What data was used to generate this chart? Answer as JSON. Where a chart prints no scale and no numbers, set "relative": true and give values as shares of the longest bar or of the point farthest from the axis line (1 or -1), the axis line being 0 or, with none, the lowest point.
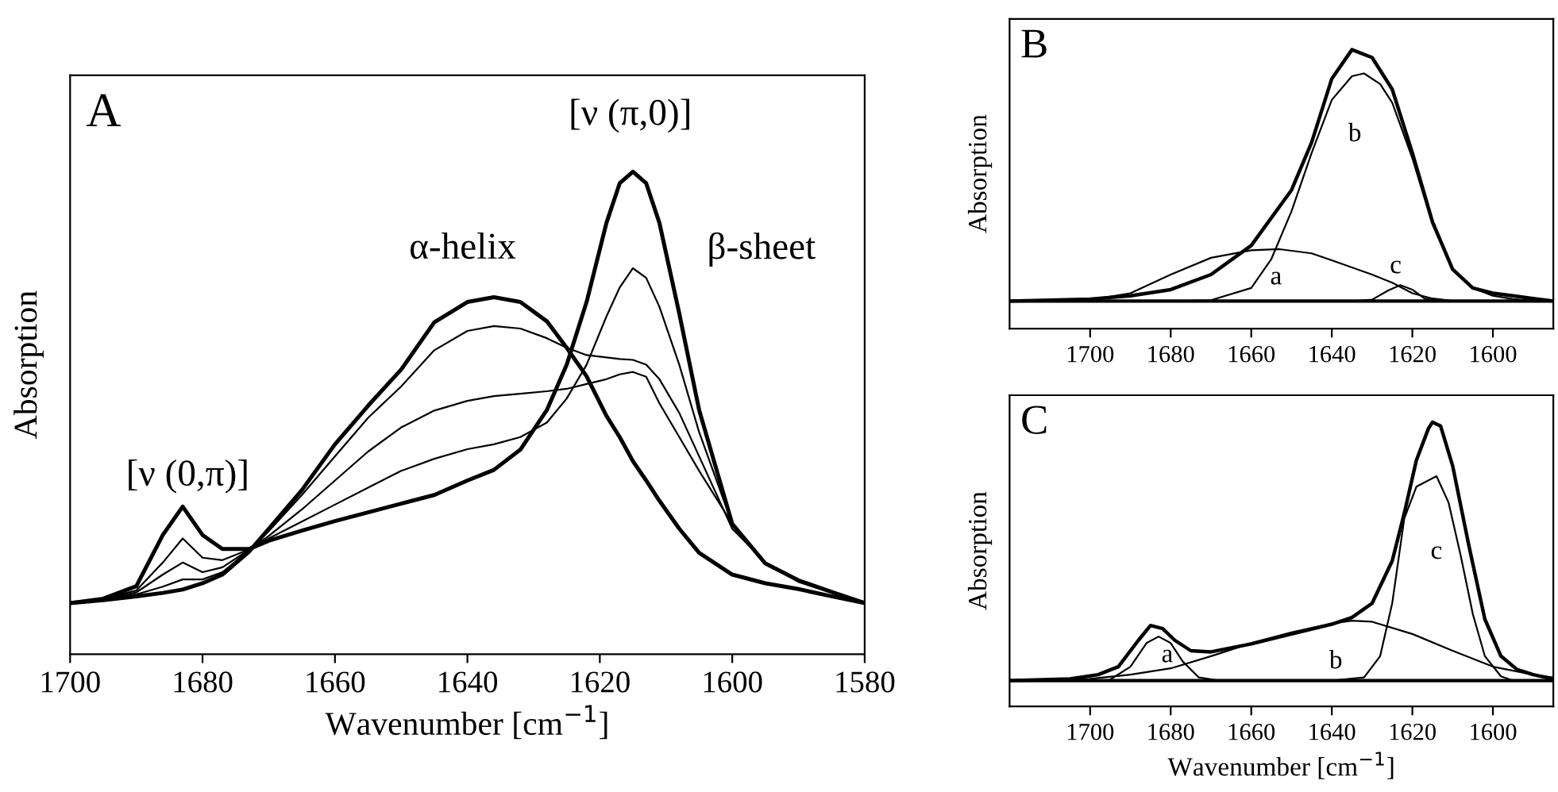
{
  "chart_data": [
    {
      "type": "line",
      "title": "A",
      "xlabel": "Wavenumber [cm$^{−1}$]",
      "ylabel": "Absorption",
      "relative": true,
      "xlim": [
        1700,
        1580
      ],
      "xticks": [
        1700,
        1680,
        1660,
        1640,
        1620,
        1600,
        1580
      ],
      "tick_labels": "x",
      "x": [
        1700,
        1695,
        1690,
        1686,
        1683,
        1680,
        1677,
        1673,
        1670,
        1665,
        1660,
        1655,
        1650,
        1645,
        1640,
        1636,
        1632,
        1628,
        1625,
        1622,
        1619,
        1617,
        1615,
        1613,
        1611,
        1608,
        1605,
        1600,
        1595,
        1590,
        1585,
        1580
      ],
      "series": [
        {
          "color": "#000000",
          "values": [
            0.106,
            0.112,
            0.12,
            0.127,
            0.134,
            0.147,
            0.165,
            0.212,
            0.26,
            0.34,
            0.435,
            0.515,
            0.59,
            0.688,
            0.73,
            0.74,
            0.73,
            0.69,
            0.635,
            0.576,
            0.494,
            0.45,
            0.4,
            0.36,
            0.318,
            0.26,
            0.21,
            0.165,
            0.147,
            0.135,
            0.12,
            0.106
          ]
        },
        {
          "color": "#000000",
          "values": [
            0.106,
            0.113,
            0.124,
            0.14,
            0.155,
            0.155,
            0.17,
            0.215,
            0.255,
            0.33,
            0.41,
            0.49,
            0.555,
            0.63,
            0.67,
            0.68,
            0.675,
            0.655,
            0.635,
            0.62,
            0.615,
            0.612,
            0.61,
            0.6,
            0.57,
            0.5,
            0.41,
            0.26,
            0.19,
            0.15,
            0.128,
            0.106
          ]
        },
        {
          "color": "#000000",
          "values": [
            0.106,
            0.114,
            0.128,
            0.165,
            0.19,
            0.17,
            0.18,
            0.216,
            0.245,
            0.3,
            0.36,
            0.42,
            0.47,
            0.505,
            0.525,
            0.535,
            0.54,
            0.545,
            0.55,
            0.56,
            0.57,
            0.58,
            0.585,
            0.575,
            0.52,
            0.45,
            0.38,
            0.27,
            0.19,
            0.15,
            0.128,
            0.106
          ]
        },
        {
          "color": "#000000",
          "values": [
            0.106,
            0.115,
            0.132,
            0.19,
            0.24,
            0.2,
            0.195,
            0.217,
            0.24,
            0.275,
            0.31,
            0.345,
            0.38,
            0.405,
            0.425,
            0.435,
            0.45,
            0.48,
            0.53,
            0.6,
            0.7,
            0.76,
            0.8,
            0.78,
            0.72,
            0.6,
            0.46,
            0.27,
            0.19,
            0.152,
            0.128,
            0.106
          ]
        },
        {
          "color": "#000000",
          "values": [
            0.106,
            0.115,
            0.141,
            0.247,
            0.306,
            0.247,
            0.218,
            0.218,
            0.235,
            0.256,
            0.276,
            0.294,
            0.312,
            0.33,
            0.36,
            0.382,
            0.424,
            0.506,
            0.6,
            0.73,
            0.894,
            0.976,
            1.0,
            0.976,
            0.894,
            0.706,
            0.506,
            0.27,
            0.188,
            0.153,
            0.129,
            0.106
          ]
        }
      ],
      "annotations": [
        "[ν (0,π)]",
        "α-helix",
        "[ν (π,0)]",
        "β-sheet"
      ]
    },
    {
      "type": "line",
      "title": "B",
      "ylabel": "Absorption",
      "relative": true,
      "xlim": [
        1720,
        1585
      ],
      "xticks": [
        1700,
        1680,
        1660,
        1640,
        1620,
        1600
      ],
      "tick_labels": "x",
      "ref_lines": [
        {
          "axis": "y",
          "value": 0.099,
          "color": "#000000"
        }
      ],
      "series": [
        {
          "color": "#000000",
          "x": [
            1720,
            1700,
            1690,
            1680,
            1670,
            1660,
            1650,
            1645,
            1640,
            1635,
            1630,
            1625,
            1620,
            1615,
            1610,
            1605,
            1600,
            1595,
            1590,
            1585
          ],
          "values": [
            0.099,
            0.106,
            0.118,
            0.14,
            0.194,
            0.298,
            0.497,
            0.668,
            0.896,
            1.0,
            0.972,
            0.858,
            0.63,
            0.383,
            0.213,
            0.146,
            0.127,
            0.118,
            0.108,
            0.099
          ]
        },
        {
          "color": "#000000",
          "x": [
            1720,
            1700,
            1690,
            1680,
            1670,
            1660,
            1653,
            1645,
            1640,
            1630,
            1625,
            1620,
            1615,
            1610,
            1600,
            1585
          ],
          "values": [
            0.099,
            0.103,
            0.127,
            0.194,
            0.254,
            0.281,
            0.285,
            0.27,
            0.245,
            0.194,
            0.165,
            0.127,
            0.108,
            0.1,
            0.099,
            0.099
          ]
        },
        {
          "color": "#000000",
          "x": [
            1720,
            1680,
            1670,
            1660,
            1655,
            1650,
            1645,
            1640,
            1635,
            1632,
            1628,
            1625,
            1620,
            1615,
            1610,
            1605,
            1600,
            1595,
            1590,
            1585
          ],
          "values": [
            0.099,
            0.099,
            0.102,
            0.146,
            0.25,
            0.421,
            0.63,
            0.82,
            0.905,
            0.915,
            0.877,
            0.81,
            0.611,
            0.374,
            0.213,
            0.146,
            0.118,
            0.106,
            0.1,
            0.099
          ]
        },
        {
          "color": "#000000",
          "x": [
            1635,
            1630,
            1626,
            1623,
            1620,
            1617,
            1614
          ],
          "values": [
            0.099,
            0.104,
            0.137,
            0.156,
            0.14,
            0.108,
            0.099
          ]
        }
      ],
      "annotations": [
        "a",
        "b",
        "c"
      ]
    },
    {
      "type": "line",
      "title": "C",
      "xlabel": "Wavenumber [cm$^{−1}$]",
      "ylabel": "Absorption",
      "relative": true,
      "xlim": [
        1720,
        1585
      ],
      "xticks": [
        1700,
        1680,
        1660,
        1640,
        1620,
        1600
      ],
      "tick_labels": "x",
      "ref_lines": [
        {
          "axis": "y",
          "value": 0.091,
          "color": "#000000"
        }
      ],
      "series": [
        {
          "color": "#000000",
          "x": [
            1720,
            1705,
            1698,
            1693,
            1688,
            1685,
            1682,
            1679,
            1675,
            1670,
            1660,
            1650,
            1640,
            1635,
            1630,
            1625,
            1622,
            1619,
            1616,
            1615,
            1613,
            1610,
            1606,
            1602,
            1598,
            1594,
            1590,
            1585
          ],
          "values": [
            0.091,
            0.097,
            0.112,
            0.14,
            0.233,
            0.285,
            0.274,
            0.233,
            0.196,
            0.192,
            0.22,
            0.255,
            0.289,
            0.313,
            0.363,
            0.512,
            0.68,
            0.866,
            0.978,
            1.0,
            0.987,
            0.847,
            0.568,
            0.307,
            0.177,
            0.13,
            0.112,
            0.097
          ]
        },
        {
          "color": "#000000",
          "x": [
            1695,
            1690,
            1686,
            1683,
            1680,
            1677,
            1673,
            1668
          ],
          "values": [
            0.095,
            0.14,
            0.223,
            0.246,
            0.223,
            0.158,
            0.102,
            0.091
          ]
        },
        {
          "color": "#000000",
          "x": [
            1720,
            1700,
            1690,
            1680,
            1670,
            1660,
            1650,
            1640,
            1635,
            1630,
            1620,
            1610,
            1600,
            1590,
            1585
          ],
          "values": [
            0.091,
            0.097,
            0.112,
            0.134,
            0.177,
            0.223,
            0.261,
            0.292,
            0.302,
            0.298,
            0.255,
            0.196,
            0.14,
            0.112,
            0.102
          ]
        },
        {
          "color": "#000000",
          "x": [
            1640,
            1632,
            1628,
            1625,
            1622,
            1619,
            1614,
            1611,
            1608,
            1605,
            1602,
            1598,
            1595
          ],
          "values": [
            0.091,
            0.102,
            0.177,
            0.363,
            0.661,
            0.773,
            0.81,
            0.717,
            0.531,
            0.326,
            0.177,
            0.106,
            0.091
          ]
        }
      ],
      "annotations": [
        "a",
        "b",
        "c"
      ]
    }
  ]
}
